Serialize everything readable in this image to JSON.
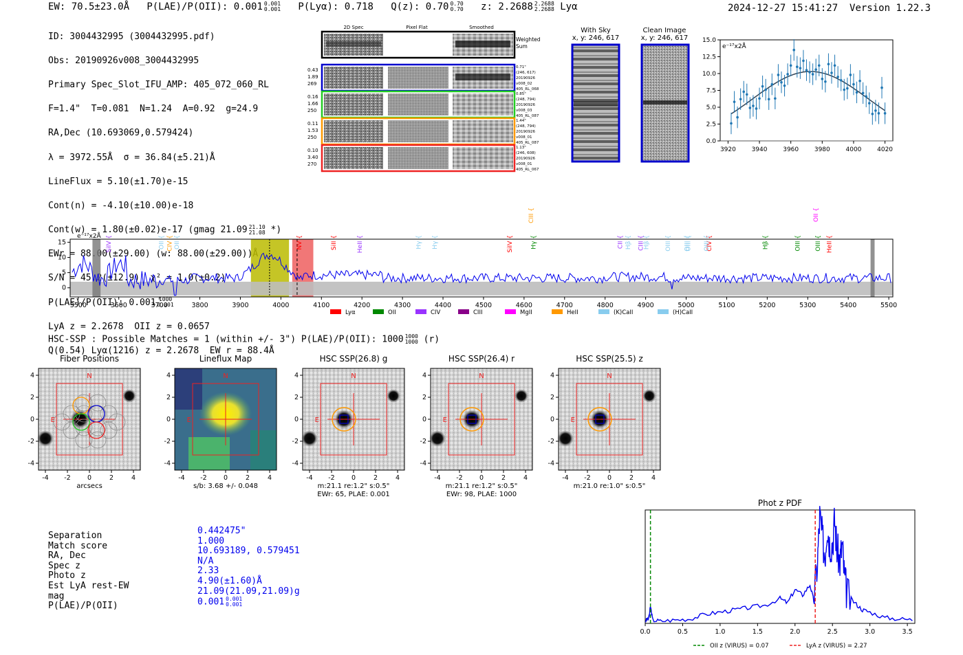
{
  "header": {
    "ew": "EW: 70.5±23.0Å",
    "plae_label": "P(LAE)/P(OII):",
    "plae_value": "0.001",
    "plae_hi": "0.001",
    "plae_lo": "0.001",
    "plya": "P(Lyα): 0.718",
    "qz_label": "Q(z): 0.70",
    "qz_hi": "0.70",
    "qz_lo": "0.70",
    "z_label": "z: 2.2688",
    "z_hi": "2.2688",
    "z_lo": "2.2688",
    "z_line": "Lyα",
    "datetime": "2024-12-27 15:41:27",
    "version": "Version 1.22.3"
  },
  "info": {
    "id": "ID: 3004432995 (3004432995.pdf)",
    "obs": "Obs: 20190926v008_3004432995",
    "primary": "Primary Spec_Slot_IFU_AMP: 405_072_060_RL",
    "fiber": "F=1.4\"  T=0.081  N=1.24  A=0.92  g=24.9",
    "radec": "RA,Dec (10.693069,0.579424)",
    "lambda": "λ = 3972.55Å  σ = 36.84(±5.21)Å",
    "lineflux": "LineFlux = 5.10(±1.70)e-15",
    "contn": "Cont(n) = -4.10(±10.00)e-18",
    "contw": "Cont(w) = 1.80(±0.02)e-17 (gmag 21.09",
    "contw_hi": "21.10",
    "contw_lo": "21.08",
    "contw_end": "*)",
    "ewr": "EWr = 88.00(±29.00) (w: 88.00(±29.00))Å",
    "sn": "S/N = 45.2(±12.9)  χ² = 1.0(±0.2)",
    "plae": "P(LAE)/P(OII): 0.001",
    "plae_hi": "1000",
    "plae_lo": "0.001",
    "lya": "LyA z = 2.2678  OII z = 0.0657",
    "q": "Q(0.54) Lyα(1216) z = 2.2678  EW r = 88.4Å"
  },
  "cutouts": {
    "col_2d": "2D Spec",
    "col_flat": "Pixel Flat",
    "col_smooth": "Smoothed",
    "weighted": "Weighted",
    "sum": "Sum",
    "rows": [
      {
        "l1": "0.43",
        "l2": "1.89",
        "l3": "269",
        "r1": "0.71\"",
        "r2": "(246, 617)",
        "r3": "20190926",
        "r4": "v008_02",
        "r5": "405_RL_068",
        "color": "#0000cc"
      },
      {
        "l1": "0.16",
        "l2": "1.66",
        "l3": "250",
        "r1": "0.85\"",
        "r2": "(248, 794)",
        "r3": "20190926",
        "r4": "v008_03",
        "r5": "405_RL_087",
        "color": "#22cc22"
      },
      {
        "l1": "0.11",
        "l2": "1.53",
        "l3": "250",
        "r1": "1.44\"",
        "r2": "(248, 794)",
        "r3": "20190926",
        "r4": "v008_01",
        "r5": "405_RL_087",
        "color": "#ff9900"
      },
      {
        "l1": "0.10",
        "l2": "3.40",
        "l3": "270",
        "r1": "1.13\"",
        "r2": "(246, 608)",
        "r3": "20190926",
        "r4": "v008_01",
        "r5": "405_RL_067",
        "color": "#ee2222"
      }
    ],
    "with_sky": "With Sky",
    "with_sky_xy": "x, y: 246, 617",
    "clean": "Clean Image",
    "clean_xy": "x, y: 246, 617"
  },
  "chart_data": [
    {
      "type": "scatter",
      "name": "zoom-spectrum",
      "unit_label": "e⁻¹⁷x2Å",
      "xlim": [
        3915,
        4025
      ],
      "ylim": [
        0,
        15
      ],
      "x_ticks": [
        3920,
        3940,
        3960,
        3980,
        4000,
        4020
      ],
      "y_ticks": [
        "0.0",
        "2.5",
        "5.0",
        "7.5",
        "10.0",
        "12.5",
        "15.0"
      ],
      "x": [
        3922,
        3924,
        3926,
        3928,
        3930,
        3932,
        3934,
        3936,
        3938,
        3940,
        3942,
        3944,
        3946,
        3948,
        3950,
        3952,
        3954,
        3956,
        3958,
        3960,
        3962,
        3964,
        3966,
        3968,
        3970,
        3972,
        3974,
        3976,
        3978,
        3980,
        3982,
        3984,
        3986,
        3988,
        3990,
        3992,
        3994,
        3996,
        3998,
        4000,
        4002,
        4004,
        4006,
        4008,
        4010,
        4012,
        4014,
        4016,
        4018,
        4020
      ],
      "y": [
        2.6,
        5.8,
        3.5,
        6.2,
        7.3,
        6.9,
        4.9,
        5.2,
        4.8,
        6.3,
        8.1,
        7.6,
        6.2,
        8.4,
        6.3,
        9.8,
        8.7,
        8.2,
        9.9,
        11.2,
        13.5,
        11.0,
        10.8,
        11.9,
        10.5,
        10.2,
        9.9,
        10.6,
        11.2,
        9.2,
        8.8,
        11.4,
        10.1,
        11.2,
        9.5,
        9.0,
        7.6,
        7.8,
        9.8,
        8.4,
        7.2,
        8.9,
        7.1,
        6.6,
        5.6,
        4.0,
        4.5,
        4.1,
        7.9,
        4.1
      ],
      "err": 1.6,
      "fit": {
        "amp": 10.3,
        "mu": 3972.55,
        "sigma": 36.84,
        "base": 0
      }
    },
    {
      "type": "line",
      "name": "full-spectrum",
      "unit_label": "e⁻¹⁷x2Å",
      "xlim": [
        3480,
        5510
      ],
      "ylim": [
        -3,
        16
      ],
      "x_ticks": [
        3500,
        3600,
        3700,
        3800,
        3900,
        4000,
        4100,
        4200,
        4300,
        4400,
        4500,
        4600,
        4700,
        4800,
        4900,
        5000,
        5100,
        5200,
        5300,
        5400,
        5500
      ],
      "y_ticks": [
        0,
        5,
        10,
        15
      ],
      "yellow_band": [
        3926,
        4020
      ],
      "red_band": [
        4028,
        4080
      ],
      "dashed_lines": [
        3972,
        4040
      ],
      "masks": [
        3535,
        3555,
        5455,
        5465
      ],
      "line_markers": [
        {
          "label": "SiIV",
          "x": 3580,
          "color": "#9933ff"
        },
        {
          "label": "OII",
          "x": 3710,
          "color": "#88ccee"
        },
        {
          "label": "CIV",
          "x": 3730,
          "color": "#ff9900"
        },
        {
          "label": "OII",
          "x": 3748,
          "color": "#88ccee"
        },
        {
          "label": "NV",
          "x": 4050,
          "color": "#ff0000"
        },
        {
          "label": "SiII",
          "x": 4135,
          "color": "#ff0000"
        },
        {
          "label": "HeII",
          "x": 4200,
          "color": "#9933ff"
        },
        {
          "label": "Hγ",
          "x": 4345,
          "color": "#88ccee"
        },
        {
          "label": "Hγ",
          "x": 4385,
          "color": "#88ccee"
        },
        {
          "label": "SiIV",
          "x": 4570,
          "color": "#ff0000"
        },
        {
          "label": "CIII",
          "x": 4622,
          "color": "#ff9900"
        },
        {
          "label": "Hγ",
          "x": 4628,
          "color": "#008800"
        },
        {
          "label": "CII",
          "x": 4842,
          "color": "#9933ff"
        },
        {
          "label": "Hβ",
          "x": 4862,
          "color": "#88ccee"
        },
        {
          "label": "CIII",
          "x": 4893,
          "color": "#9933ff"
        },
        {
          "label": "Hβ",
          "x": 4907,
          "color": "#88ccee"
        },
        {
          "label": "OIII",
          "x": 4960,
          "color": "#88ccee"
        },
        {
          "label": "OIII",
          "x": 5007,
          "color": "#88ccee"
        },
        {
          "label": "OIII",
          "x": 5010,
          "color": "#88ccee"
        },
        {
          "label": "CIV",
          "x": 5062,
          "color": "#ff0000"
        },
        {
          "label": "OIII",
          "x": 5055,
          "color": "#88ccee"
        },
        {
          "label": "Hβ",
          "x": 5200,
          "color": "#008800"
        },
        {
          "label": "OII",
          "x": 5325,
          "color": "#ff00ff"
        },
        {
          "label": "OIII",
          "x": 5280,
          "color": "#008800"
        },
        {
          "label": "OIII",
          "x": 5330,
          "color": "#008800"
        },
        {
          "label": "HeII",
          "x": 5358,
          "color": "#ff0000"
        }
      ],
      "legend": [
        {
          "label": "Lyα",
          "color": "#ff0000"
        },
        {
          "label": "OII",
          "color": "#008800"
        },
        {
          "label": "CIV",
          "color": "#9933ff"
        },
        {
          "label": "CIII",
          "color": "#880088"
        },
        {
          "label": "MgII",
          "color": "#ff00ff"
        },
        {
          "label": "HeII",
          "color": "#ff9900"
        },
        {
          "label": "(K)CaII",
          "color": "#88ccee"
        },
        {
          "label": "(H)CaII",
          "color": "#88ccee"
        }
      ]
    },
    {
      "type": "line",
      "name": "phot-z-pdf",
      "title": "Phot z PDF",
      "xlim": [
        0,
        3.6
      ],
      "x_ticks": [
        "0.0",
        "0.5",
        "1.0",
        "1.5",
        "2.0",
        "2.5",
        "3.0",
        "3.5"
      ],
      "oii_z": 0.07,
      "lya_z": 2.27,
      "legend_oii": "OII z (VIRUS) = 0.07",
      "legend_lya": "LyA z (VIRUS) = 2.27",
      "x": [
        0.0,
        0.05,
        0.07,
        0.1,
        0.2,
        0.4,
        0.6,
        0.8,
        1.0,
        1.2,
        1.4,
        1.6,
        1.8,
        1.9,
        2.0,
        2.1,
        2.2,
        2.25,
        2.3,
        2.33,
        2.36,
        2.4,
        2.43,
        2.46,
        2.5,
        2.53,
        2.56,
        2.6,
        2.63,
        2.66,
        2.7,
        2.8,
        2.9,
        3.0,
        3.2,
        3.4,
        3.6
      ],
      "y": [
        0.02,
        0.05,
        0.15,
        0.03,
        0.02,
        0.03,
        0.04,
        0.08,
        0.1,
        0.12,
        0.14,
        0.16,
        0.22,
        0.18,
        0.3,
        0.25,
        0.34,
        0.2,
        0.55,
        0.95,
        0.78,
        0.6,
        0.88,
        0.72,
        0.7,
        0.92,
        0.65,
        0.55,
        0.7,
        0.4,
        0.25,
        0.18,
        0.12,
        0.1,
        0.05,
        0.04,
        0.03
      ]
    }
  ],
  "imaging": {
    "hsc_line": "HSC-SSP : Possible Matches = 1 (within +/- 3\")  P(LAE)/P(OII): 1000",
    "hsc_hi": "1000",
    "hsc_lo": "1000",
    "hsc_end": "(r)",
    "panels": [
      {
        "title": "Fiber Positions",
        "cap1": "arcsecs",
        "cap2": ""
      },
      {
        "title": "Lineflux Map",
        "cap1": "s/b: 3.68 +/- 0.048",
        "cap2": ""
      },
      {
        "title": "HSC SSP(26.8) g",
        "cap1": "m:21.1  re:1.2\"  s:0.5\"",
        "cap2": "EWr: 65, PLAE: 0.001"
      },
      {
        "title": "HSC SSP(26.4) r",
        "cap1": "m:21.1  re:1.2\"  s:0.5\"",
        "cap2": "EWr: 98, PLAE: 1000"
      },
      {
        "title": "HSC SSP(25.5) z",
        "cap1": "m:21.0  re:1.0\"  s:0.5\"",
        "cap2": ""
      }
    ],
    "ticks": [
      "-4",
      "-2",
      "0",
      "2",
      "4"
    ],
    "north": "N",
    "east": "E"
  },
  "match": {
    "labels": [
      "Separation",
      "Match score",
      "RA, Dec",
      "Spec z",
      "Photo z",
      "Est LyA rest-EW",
      "mag",
      "P(LAE)/P(OII)"
    ],
    "values": [
      "0.442475\"",
      "1.000",
      "10.693189, 0.579451",
      "N/A",
      "2.33",
      "4.90(±1.60)Å",
      "21.09(21.09,21.09)g",
      "0.001"
    ],
    "plae_hi": "0.001",
    "plae_lo": "0.001"
  }
}
